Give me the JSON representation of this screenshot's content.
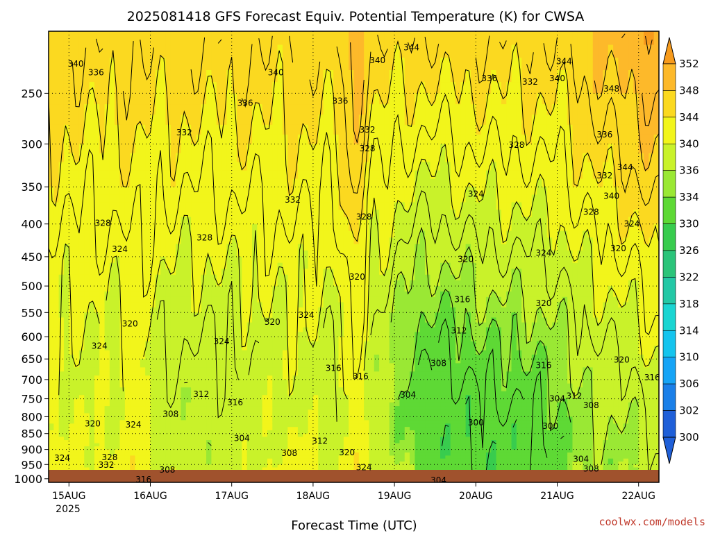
{
  "chart_data": {
    "type": "heatmap",
    "title": "2025081418 GFS Forecast Equiv. Potential Temperature (K) for CWSA",
    "xlabel": "Forecast Time (UTC)",
    "ylabel": "",
    "credit": "coolwx.com/models",
    "x_ticks": [
      "15AUG",
      "16AUG",
      "17AUG",
      "18AUG",
      "19AUG",
      "20AUG",
      "21AUG",
      "22AUG"
    ],
    "x_tick_hours": [
      6,
      30,
      54,
      78,
      102,
      126,
      150,
      174
    ],
    "x_year_label": "2025",
    "xlim_hours": [
      0,
      180
    ],
    "y_ticks": [
      250,
      300,
      350,
      400,
      450,
      500,
      550,
      600,
      650,
      700,
      750,
      800,
      850,
      900,
      950,
      1000
    ],
    "ylim_hpa": [
      200,
      1013
    ],
    "y_scale": "log-pressure",
    "colorbar_levels": [
      352,
      348,
      344,
      340,
      336,
      334,
      330,
      326,
      322,
      318,
      314,
      310,
      306,
      302,
      300
    ],
    "colorbar_colors": [
      "#f79b1c",
      "#fdb92a",
      "#fbd920",
      "#f2f51b",
      "#c9f22a",
      "#9ae834",
      "#5ed935",
      "#38cc4e",
      "#2bc47a",
      "#23c8a6",
      "#1ad5d2",
      "#15c4ee",
      "#16a4f6",
      "#1a7fe8",
      "#1f5fd8"
    ],
    "ground_color": "#a0522d",
    "contour_labels": [
      {
        "t": 8,
        "p": 225,
        "v": "340"
      },
      {
        "t": 14,
        "p": 232,
        "v": "336"
      },
      {
        "t": 67,
        "p": 232,
        "v": "340"
      },
      {
        "t": 58,
        "p": 259,
        "v": "336"
      },
      {
        "t": 86,
        "p": 257,
        "v": "336"
      },
      {
        "t": 97,
        "p": 222,
        "v": "340"
      },
      {
        "t": 107,
        "p": 212,
        "v": "344"
      },
      {
        "t": 130,
        "p": 237,
        "v": "336"
      },
      {
        "t": 142,
        "p": 240,
        "v": "332"
      },
      {
        "t": 150,
        "p": 237,
        "v": "340"
      },
      {
        "t": 152,
        "p": 223,
        "v": "344"
      },
      {
        "t": 166,
        "p": 246,
        "v": "348"
      },
      {
        "t": 40,
        "p": 288,
        "v": "332"
      },
      {
        "t": 94,
        "p": 285,
        "v": "332"
      },
      {
        "t": 94,
        "p": 305,
        "v": "328"
      },
      {
        "t": 138,
        "p": 301,
        "v": "328"
      },
      {
        "t": 164,
        "p": 290,
        "v": "336"
      },
      {
        "t": 164,
        "p": 336,
        "v": "332"
      },
      {
        "t": 170,
        "p": 326,
        "v": "344"
      },
      {
        "t": 166,
        "p": 362,
        "v": "340"
      },
      {
        "t": 72,
        "p": 367,
        "v": "332"
      },
      {
        "t": 126,
        "p": 359,
        "v": "324"
      },
      {
        "t": 16,
        "p": 399,
        "v": "328"
      },
      {
        "t": 46,
        "p": 420,
        "v": "328"
      },
      {
        "t": 93,
        "p": 390,
        "v": "328"
      },
      {
        "t": 160,
        "p": 383,
        "v": "328"
      },
      {
        "t": 172,
        "p": 400,
        "v": "324"
      },
      {
        "t": 21,
        "p": 438,
        "v": "324"
      },
      {
        "t": 91,
        "p": 484,
        "v": "320"
      },
      {
        "t": 123,
        "p": 454,
        "v": "320"
      },
      {
        "t": 146,
        "p": 444,
        "v": "324"
      },
      {
        "t": 168,
        "p": 437,
        "v": "320"
      },
      {
        "t": 24,
        "p": 573,
        "v": "320"
      },
      {
        "t": 66,
        "p": 569,
        "v": "320"
      },
      {
        "t": 76,
        "p": 555,
        "v": "324"
      },
      {
        "t": 51,
        "p": 610,
        "v": "324"
      },
      {
        "t": 15,
        "p": 620,
        "v": "324"
      },
      {
        "t": 122,
        "p": 525,
        "v": "316"
      },
      {
        "t": 121,
        "p": 587,
        "v": "312"
      },
      {
        "t": 146,
        "p": 532,
        "v": "320"
      },
      {
        "t": 169,
        "p": 652,
        "v": "320"
      },
      {
        "t": 115,
        "p": 660,
        "v": "308"
      },
      {
        "t": 146,
        "p": 665,
        "v": "316"
      },
      {
        "t": 178,
        "p": 695,
        "v": "316"
      },
      {
        "t": 84,
        "p": 672,
        "v": "316"
      },
      {
        "t": 92,
        "p": 692,
        "v": "316"
      },
      {
        "t": 45,
        "p": 738,
        "v": "312"
      },
      {
        "t": 55,
        "p": 760,
        "v": "316"
      },
      {
        "t": 106,
        "p": 740,
        "v": "304"
      },
      {
        "t": 150,
        "p": 750,
        "v": "304"
      },
      {
        "t": 155,
        "p": 742,
        "v": "312"
      },
      {
        "t": 160,
        "p": 768,
        "v": "308"
      },
      {
        "t": 36,
        "p": 792,
        "v": "308"
      },
      {
        "t": 25,
        "p": 823,
        "v": "324"
      },
      {
        "t": 13,
        "p": 820,
        "v": "320"
      },
      {
        "t": 126,
        "p": 817,
        "v": "300"
      },
      {
        "t": 148,
        "p": 828,
        "v": "300"
      },
      {
        "t": 57,
        "p": 865,
        "v": "304"
      },
      {
        "t": 80,
        "p": 873,
        "v": "312"
      },
      {
        "t": 71,
        "p": 912,
        "v": "308"
      },
      {
        "t": 88,
        "p": 910,
        "v": "320"
      },
      {
        "t": 4,
        "p": 928,
        "v": "324"
      },
      {
        "t": 18,
        "p": 926,
        "v": "328"
      },
      {
        "t": 17,
        "p": 952,
        "v": "332"
      },
      {
        "t": 35,
        "p": 968,
        "v": "308"
      },
      {
        "t": 93,
        "p": 960,
        "v": "324"
      },
      {
        "t": 157,
        "p": 932,
        "v": "304"
      },
      {
        "t": 160,
        "p": 965,
        "v": "308"
      },
      {
        "t": 28,
        "p": 1003,
        "v": "316"
      },
      {
        "t": 115,
        "p": 1020,
        "v": "304"
      }
    ]
  }
}
